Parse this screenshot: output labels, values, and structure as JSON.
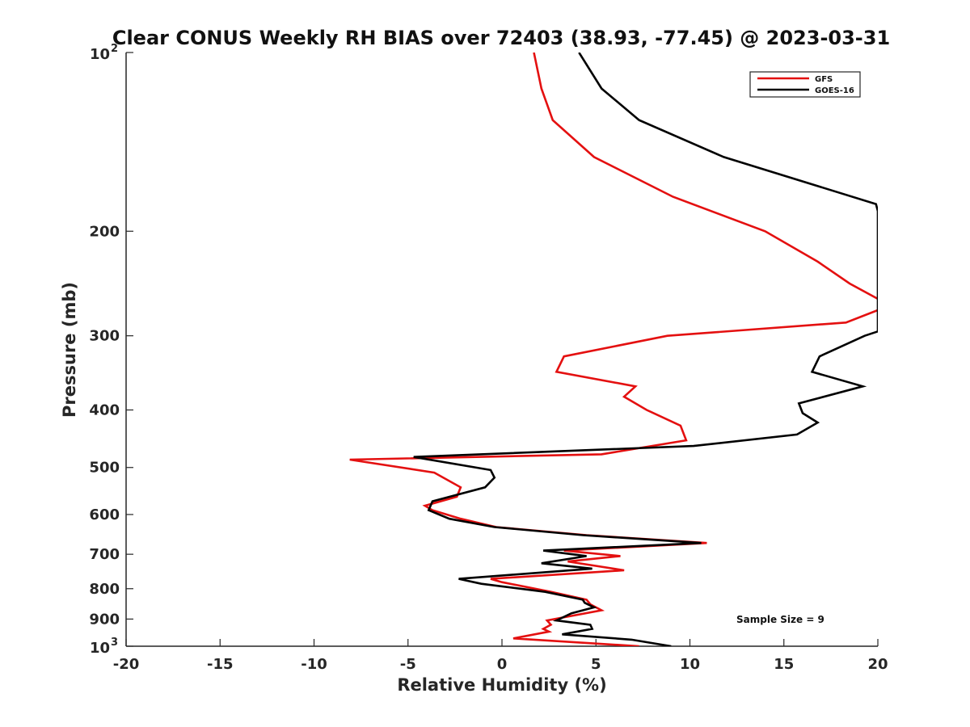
{
  "chart_data": {
    "type": "line",
    "title": "Clear CONUS Weekly RH BIAS over 72403 (38.93, -77.45) @ 2023-03-31",
    "xlabel": "Relative Humidity (%)",
    "ylabel": "Pressure (mb)",
    "xlim": [
      -20,
      20
    ],
    "ylim": [
      100,
      1000
    ],
    "y_scale": "log",
    "y_reversed": true,
    "grid": false,
    "legend_position": "top-right",
    "annotation": "Sample Size = 9",
    "x_ticks": [
      "-20",
      "-15",
      "-10",
      "-5",
      "0",
      "5",
      "10",
      "15",
      "20"
    ],
    "y_ticks": [
      {
        "value": 100,
        "base": "10",
        "exp": "2"
      },
      {
        "value": 200,
        "label": "200"
      },
      {
        "value": 300,
        "label": "300"
      },
      {
        "value": 400,
        "label": "400"
      },
      {
        "value": 500,
        "label": "500"
      },
      {
        "value": 600,
        "label": "600"
      },
      {
        "value": 700,
        "label": "700"
      },
      {
        "value": 800,
        "label": "800"
      },
      {
        "value": 900,
        "label": "900"
      },
      {
        "value": 1000,
        "base": "10",
        "exp": "3"
      }
    ],
    "series": [
      {
        "name": "GFS",
        "color": "#e41010",
        "points": [
          [
            1.7,
            100
          ],
          [
            2.1,
            115
          ],
          [
            2.7,
            130
          ],
          [
            4.9,
            150
          ],
          [
            9.1,
            175
          ],
          [
            14.0,
            200
          ],
          [
            16.8,
            225
          ],
          [
            18.5,
            245
          ],
          [
            20.0,
            260
          ],
          [
            20.2,
            270
          ],
          [
            18.3,
            285
          ],
          [
            8.8,
            300
          ],
          [
            3.3,
            325
          ],
          [
            2.9,
            345
          ],
          [
            7.1,
            365
          ],
          [
            6.5,
            380
          ],
          [
            7.7,
            400
          ],
          [
            9.5,
            425
          ],
          [
            9.8,
            450
          ],
          [
            5.3,
            475
          ],
          [
            -8.1,
            485
          ],
          [
            -3.6,
            510
          ],
          [
            -2.2,
            540
          ],
          [
            -2.4,
            560
          ],
          [
            -4.1,
            580
          ],
          [
            -3.7,
            590
          ],
          [
            -2.2,
            610
          ],
          [
            -0.3,
            630
          ],
          [
            4.5,
            650
          ],
          [
            10.9,
            670
          ],
          [
            3.3,
            690
          ],
          [
            6.3,
            705
          ],
          [
            3.5,
            720
          ],
          [
            6.5,
            745
          ],
          [
            -0.6,
            770
          ],
          [
            0.0,
            780
          ],
          [
            2.6,
            810
          ],
          [
            4.5,
            835
          ],
          [
            4.7,
            850
          ],
          [
            5.3,
            870
          ],
          [
            2.4,
            905
          ],
          [
            2.6,
            920
          ],
          [
            2.2,
            935
          ],
          [
            2.5,
            945
          ],
          [
            0.6,
            970
          ],
          [
            7.3,
            1000
          ]
        ]
      },
      {
        "name": "GOES-16",
        "color": "#000000",
        "points": [
          [
            4.1,
            100
          ],
          [
            5.3,
            115
          ],
          [
            7.3,
            130
          ],
          [
            11.8,
            150
          ],
          [
            19.9,
            180
          ],
          [
            20.0,
            185
          ],
          [
            20.0,
            295
          ],
          [
            19.3,
            300
          ],
          [
            16.9,
            325
          ],
          [
            16.5,
            345
          ],
          [
            19.2,
            365
          ],
          [
            15.8,
            390
          ],
          [
            16.0,
            405
          ],
          [
            16.8,
            420
          ],
          [
            15.7,
            440
          ],
          [
            10.2,
            460
          ],
          [
            -4.7,
            480
          ],
          [
            -0.6,
            505
          ],
          [
            -0.4,
            520
          ],
          [
            -0.9,
            540
          ],
          [
            -3.7,
            570
          ],
          [
            -3.9,
            590
          ],
          [
            -2.8,
            610
          ],
          [
            -0.4,
            630
          ],
          [
            4.3,
            650
          ],
          [
            10.6,
            670
          ],
          [
            2.2,
            690
          ],
          [
            4.5,
            705
          ],
          [
            2.1,
            725
          ],
          [
            4.8,
            740
          ],
          [
            -2.3,
            770
          ],
          [
            -1.1,
            785
          ],
          [
            2.3,
            810
          ],
          [
            4.3,
            835
          ],
          [
            4.4,
            845
          ],
          [
            4.9,
            860
          ],
          [
            3.7,
            880
          ],
          [
            2.9,
            905
          ],
          [
            4.7,
            920
          ],
          [
            4.8,
            935
          ],
          [
            3.2,
            955
          ],
          [
            6.9,
            975
          ],
          [
            9.0,
            1000
          ]
        ]
      }
    ]
  }
}
